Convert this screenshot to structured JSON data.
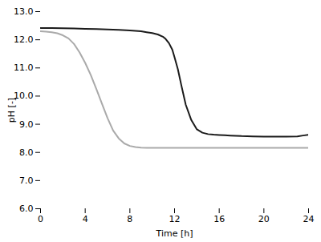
{
  "chart_data": {
    "type": "line",
    "xlabel": "Time [h]",
    "ylabel": "pH [-]",
    "xlim": [
      0,
      24
    ],
    "ylim": [
      6,
      13
    ],
    "xticks": [
      0,
      4,
      8,
      12,
      16,
      20,
      24
    ],
    "yticks": [
      6,
      7,
      8,
      9,
      10,
      11,
      12,
      13
    ],
    "grid": false,
    "series": [
      {
        "color": "#aaaaaa",
        "x": [
          0,
          0.5,
          1,
          1.5,
          2,
          2.5,
          3,
          3.5,
          4,
          4.5,
          5,
          5.5,
          6,
          6.5,
          7,
          7.5,
          8,
          8.5,
          9,
          9.5,
          10,
          10.5,
          11,
          12,
          13,
          14,
          15,
          16,
          17,
          18,
          19,
          20,
          21,
          22,
          23,
          24
        ],
        "values": [
          12.3,
          12.29,
          12.27,
          12.23,
          12.16,
          12.05,
          11.85,
          11.55,
          11.18,
          10.75,
          10.25,
          9.73,
          9.22,
          8.78,
          8.5,
          8.32,
          8.23,
          8.19,
          8.17,
          8.16,
          8.16,
          8.16,
          8.16,
          8.16,
          8.16,
          8.16,
          8.16,
          8.16,
          8.16,
          8.16,
          8.16,
          8.16,
          8.16,
          8.16,
          8.16,
          8.16
        ]
      },
      {
        "color": "#1a1a1a",
        "x": [
          0,
          0.5,
          1,
          2,
          3,
          4,
          5,
          6,
          7,
          8,
          9,
          9.5,
          10,
          10.5,
          11,
          11.2,
          11.5,
          11.8,
          12,
          12.3,
          12.6,
          13,
          13.5,
          14,
          14.5,
          15,
          15.5,
          16,
          16.5,
          17,
          17.5,
          18,
          19,
          20,
          21,
          22,
          23,
          23.5,
          24
        ],
        "values": [
          12.42,
          12.42,
          12.42,
          12.41,
          12.4,
          12.39,
          12.38,
          12.37,
          12.35,
          12.33,
          12.3,
          12.27,
          12.24,
          12.19,
          12.1,
          12.03,
          11.88,
          11.65,
          11.38,
          10.95,
          10.4,
          9.7,
          9.15,
          8.82,
          8.7,
          8.65,
          8.63,
          8.62,
          8.61,
          8.6,
          8.59,
          8.58,
          8.57,
          8.56,
          8.56,
          8.56,
          8.57,
          8.6,
          8.63
        ]
      }
    ]
  }
}
